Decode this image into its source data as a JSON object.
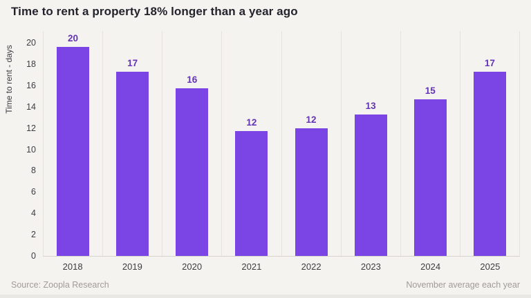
{
  "title": "Time to rent a property 18% longer than a year ago",
  "footer": {
    "source": "Source: Zoopla Research",
    "note": "November average each year"
  },
  "chart_data": {
    "type": "bar",
    "title": "Time to rent a property 18% longer than a year ago",
    "categories": [
      "2018",
      "2019",
      "2020",
      "2021",
      "2022",
      "2023",
      "2024",
      "2025"
    ],
    "values": [
      20,
      17,
      16,
      12,
      12,
      13,
      15,
      17
    ],
    "bar_heights_precise": [
      19.6,
      17.3,
      15.7,
      11.7,
      12.0,
      13.3,
      14.7,
      17.3
    ],
    "data_labels": [
      "20",
      "17",
      "16",
      "12",
      "12",
      "13",
      "15",
      "17"
    ],
    "xlabel": "",
    "ylabel": "Time to rent - days",
    "ylim": [
      0,
      20
    ],
    "ytick_step": 2,
    "yticks": [
      0,
      2,
      4,
      6,
      8,
      10,
      12,
      14,
      16,
      18,
      20
    ],
    "grid": "vertical-category-separators",
    "legend": "none",
    "colors": {
      "bar": "#7B45E6",
      "data_label": "#6234B5",
      "background": "#F5F3EF",
      "grid_line": "#E6E3DD",
      "axis_line": "#D6D3CC",
      "title_text": "#23232D",
      "tick_text": "#3C3C42",
      "footer_text": "#9F9C97"
    }
  }
}
